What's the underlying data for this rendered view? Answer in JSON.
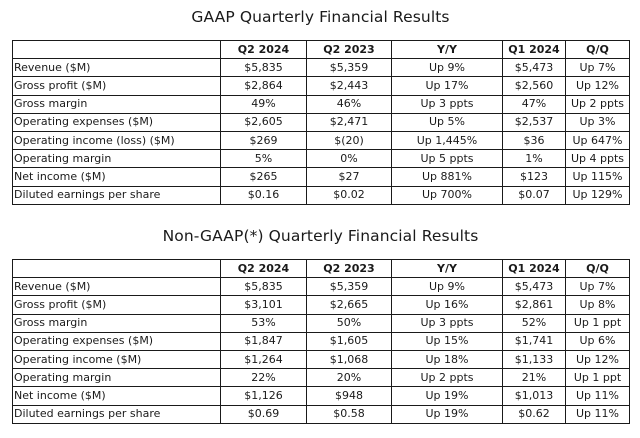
{
  "gaap": {
    "title": "GAAP Quarterly Financial Results",
    "headers": [
      "",
      "Q2 2024",
      "Q2 2023",
      "Y/Y",
      "Q1 2024",
      "Q/Q"
    ],
    "rows": [
      [
        "Revenue ($M)",
        "$5,835",
        "$5,359",
        "Up 9%",
        "$5,473",
        "Up 7%"
      ],
      [
        "Gross profit ($M)",
        "$2,864",
        "$2,443",
        "Up 17%",
        "$2,560",
        "Up 12%"
      ],
      [
        "Gross margin",
        "49%",
        "46%",
        "Up 3 ppts",
        "47%",
        "Up 2 ppts"
      ],
      [
        "Operating expenses ($M)",
        "$2,605",
        "$2,471",
        "Up 5%",
        "$2,537",
        "Up 3%"
      ],
      [
        "Operating income (loss) ($M)",
        "$269",
        "$(20)",
        "Up 1,445%",
        "$36",
        "Up 647%"
      ],
      [
        "Operating margin",
        "5%",
        "0%",
        "Up 5 ppts",
        "1%",
        "Up 4 ppts"
      ],
      [
        "Net income ($M)",
        "$265",
        "$27",
        "Up 881%",
        "$123",
        "Up 115%"
      ],
      [
        "Diluted earnings per share",
        "$0.16",
        "$0.02",
        "Up 700%",
        "$0.07",
        "Up 129%"
      ]
    ]
  },
  "nongaap": {
    "title": "Non-GAAP(*) Quarterly Financial Results",
    "headers": [
      "",
      "Q2 2024",
      "Q2 2023",
      "Y/Y",
      "Q1 2024",
      "Q/Q"
    ],
    "rows": [
      [
        "Revenue ($M)",
        "$5,835",
        "$5,359",
        "Up 9%",
        "$5,473",
        "Up 7%"
      ],
      [
        "Gross profit ($M)",
        "$3,101",
        "$2,665",
        "Up 16%",
        "$2,861",
        "Up 8%"
      ],
      [
        "Gross margin",
        "53%",
        "50%",
        "Up 3 ppts",
        "52%",
        "Up 1 ppt"
      ],
      [
        "Operating expenses ($M)",
        "$1,847",
        "$1,605",
        "Up 15%",
        "$1,741",
        "Up 6%"
      ],
      [
        "Operating income ($M)",
        "$1,264",
        "$1,068",
        "Up 18%",
        "$1,133",
        "Up 12%"
      ],
      [
        "Operating margin",
        "22%",
        "20%",
        "Up 2 ppts",
        "21%",
        "Up 1 ppt"
      ],
      [
        "Net income ($M)",
        "$1,126",
        "$948",
        "Up 19%",
        "$1,013",
        "Up 11%"
      ],
      [
        "Diluted earnings per share",
        "$0.69",
        "$0.58",
        "Up 19%",
        "$0.62",
        "Up 11%"
      ]
    ]
  }
}
